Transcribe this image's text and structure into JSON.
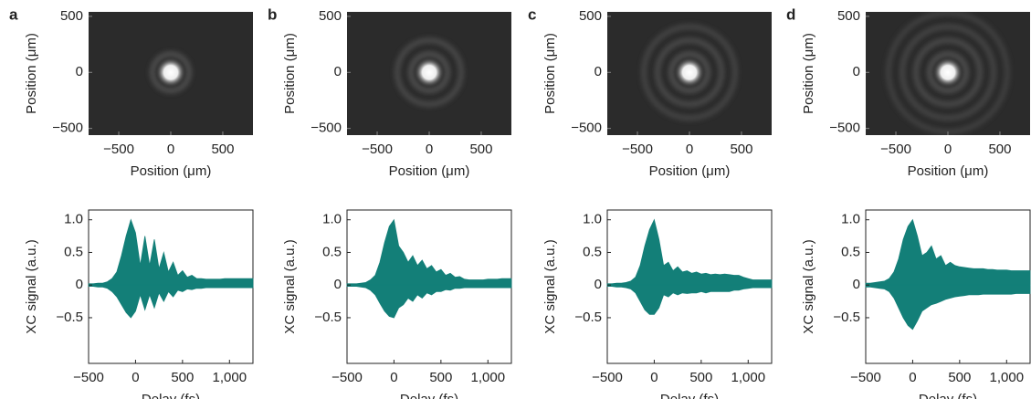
{
  "chart_data": [
    {
      "type": "image",
      "panel_label": "a",
      "xlabel": "Position (μm)",
      "ylabel": "Position (μm)",
      "xlim": [
        -790,
        790
      ],
      "ylim": [
        -560,
        540
      ],
      "xticks": [
        {
          "value": -500,
          "label": "−500"
        },
        0,
        500
      ],
      "yticks": [
        {
          "value": -500,
          "label": "−500"
        },
        0,
        500
      ]
    },
    {
      "type": "image",
      "panel_label": "b",
      "xlabel": "Position (μm)",
      "ylabel": "Position (μm)",
      "xlim": [
        -790,
        790
      ],
      "ylim": [
        -560,
        540
      ],
      "xticks": [
        {
          "value": -500,
          "label": "−500"
        },
        0,
        500
      ],
      "yticks": [
        {
          "value": -500,
          "label": "−500"
        },
        0,
        500
      ]
    },
    {
      "type": "image",
      "panel_label": "c",
      "xlabel": "Position (μm)",
      "ylabel": "Position (μm)",
      "xlim": [
        -790,
        790
      ],
      "ylim": [
        -560,
        540
      ],
      "xticks": [
        {
          "value": -500,
          "label": "−500"
        },
        0,
        500
      ],
      "yticks": [
        {
          "value": -500,
          "label": "−500"
        },
        0,
        500
      ]
    },
    {
      "type": "image",
      "panel_label": "d",
      "xlabel": "Position (μm)",
      "ylabel": "Position (μm)",
      "xlim": [
        -790,
        790
      ],
      "ylim": [
        -560,
        540
      ],
      "xticks": [
        {
          "value": -500,
          "label": "−500"
        },
        0,
        500
      ],
      "yticks": [
        {
          "value": -500,
          "label": "−500"
        },
        0,
        500
      ]
    },
    {
      "type": "area",
      "xlabel": "Delay (fs)",
      "ylabel": "XC signal (a.u.)",
      "xlim": [
        -500,
        1250
      ],
      "ylim": [
        -1.2,
        1.15
      ],
      "xticks": [
        {
          "value": -500,
          "label": "−500"
        },
        0,
        500,
        {
          "value": 1000,
          "label": "1,000"
        }
      ],
      "yticks": [
        {
          "value": -0.5,
          "label": "−0.5"
        },
        0,
        0.5,
        {
          "value": 1,
          "label": "1.0"
        }
      ],
      "x": [
        -500,
        -450,
        -400,
        -350,
        -300,
        -250,
        -200,
        -150,
        -100,
        -50,
        0,
        50,
        100,
        150,
        200,
        250,
        300,
        350,
        400,
        450,
        500,
        550,
        600,
        650,
        700,
        750,
        800,
        850,
        900,
        950,
        1000,
        1050,
        1100,
        1150,
        1200,
        1250
      ],
      "series": [
        {
          "color": "#137f78",
          "values": [
            0.02,
            0.02,
            0.03,
            0.03,
            0.05,
            0.1,
            0.2,
            0.45,
            0.75,
            1.0,
            0.8,
            0.3,
            0.75,
            0.3,
            0.7,
            0.25,
            0.5,
            0.2,
            0.35,
            0.15,
            0.22,
            0.12,
            0.15,
            0.1,
            0.1,
            0.09,
            0.09,
            0.09,
            0.09,
            0.1,
            0.1,
            0.1,
            0.1,
            0.1,
            0.1,
            0.1
          ]
        },
        {
          "color": "#137f78",
          "values": [
            -0.02,
            -0.02,
            -0.03,
            -0.03,
            -0.05,
            -0.1,
            -0.18,
            -0.3,
            -0.42,
            -0.5,
            -0.4,
            -0.15,
            -0.38,
            -0.15,
            -0.35,
            -0.12,
            -0.25,
            -0.1,
            -0.18,
            -0.08,
            -0.1,
            -0.06,
            -0.07,
            -0.05,
            -0.05,
            -0.04,
            -0.04,
            -0.04,
            -0.04,
            -0.04,
            -0.04,
            -0.04,
            -0.04,
            -0.04,
            -0.04,
            -0.04
          ]
        }
      ]
    },
    {
      "type": "area",
      "xlabel": "Delay (fs)",
      "ylabel": "XC signal (a.u.)",
      "xlim": [
        -500,
        1250
      ],
      "ylim": [
        -1.2,
        1.15
      ],
      "xticks": [
        {
          "value": -500,
          "label": "−500"
        },
        0,
        500,
        {
          "value": 1000,
          "label": "1,000"
        }
      ],
      "yticks": [
        {
          "value": -0.5,
          "label": "−0.5"
        },
        0,
        0.5,
        {
          "value": 1,
          "label": "1.0"
        }
      ],
      "x": [
        -500,
        -450,
        -400,
        -350,
        -300,
        -250,
        -200,
        -150,
        -100,
        -50,
        0,
        50,
        100,
        150,
        200,
        250,
        300,
        350,
        400,
        450,
        500,
        550,
        600,
        650,
        700,
        750,
        800,
        850,
        900,
        950,
        1000,
        1050,
        1100,
        1150,
        1200,
        1250
      ],
      "series": [
        {
          "color": "#137f78",
          "values": [
            0.02,
            0.02,
            0.02,
            0.03,
            0.04,
            0.08,
            0.15,
            0.35,
            0.65,
            0.9,
            1.0,
            0.6,
            0.5,
            0.35,
            0.45,
            0.3,
            0.38,
            0.25,
            0.3,
            0.2,
            0.24,
            0.15,
            0.18,
            0.12,
            0.13,
            0.09,
            0.08,
            0.08,
            0.08,
            0.08,
            0.09,
            0.09,
            0.09,
            0.1,
            0.1,
            0.1
          ]
        },
        {
          "color": "#137f78",
          "values": [
            -0.02,
            -0.02,
            -0.02,
            -0.03,
            -0.04,
            -0.08,
            -0.15,
            -0.28,
            -0.4,
            -0.48,
            -0.5,
            -0.35,
            -0.3,
            -0.2,
            -0.25,
            -0.15,
            -0.2,
            -0.12,
            -0.15,
            -0.1,
            -0.1,
            -0.07,
            -0.08,
            -0.05,
            -0.05,
            -0.04,
            -0.04,
            -0.04,
            -0.04,
            -0.04,
            -0.04,
            -0.04,
            -0.04,
            -0.04,
            -0.04,
            -0.04
          ]
        }
      ]
    },
    {
      "type": "area",
      "xlabel": "Delay (fs)",
      "ylabel": "XC signal (a.u.)",
      "xlim": [
        -500,
        1250
      ],
      "ylim": [
        -1.2,
        1.15
      ],
      "xticks": [
        {
          "value": -500,
          "label": "−500"
        },
        0,
        500,
        {
          "value": 1000,
          "label": "1,000"
        }
      ],
      "yticks": [
        {
          "value": -0.5,
          "label": "−0.5"
        },
        0,
        0.5,
        {
          "value": 1,
          "label": "1.0"
        }
      ],
      "x": [
        -500,
        -450,
        -400,
        -350,
        -300,
        -250,
        -200,
        -150,
        -100,
        -50,
        0,
        50,
        100,
        150,
        200,
        250,
        300,
        350,
        400,
        450,
        500,
        550,
        600,
        650,
        700,
        750,
        800,
        850,
        900,
        950,
        1000,
        1050,
        1100,
        1150,
        1200,
        1250
      ],
      "series": [
        {
          "color": "#137f78",
          "values": [
            0.02,
            0.02,
            0.03,
            0.03,
            0.04,
            0.06,
            0.12,
            0.3,
            0.6,
            0.85,
            1.0,
            0.7,
            0.3,
            0.35,
            0.22,
            0.28,
            0.2,
            0.22,
            0.18,
            0.2,
            0.17,
            0.18,
            0.16,
            0.17,
            0.16,
            0.17,
            0.16,
            0.15,
            0.15,
            0.12,
            0.1,
            0.08,
            0.08,
            0.08,
            0.08,
            0.08
          ]
        },
        {
          "color": "#137f78",
          "values": [
            -0.02,
            -0.02,
            -0.03,
            -0.03,
            -0.04,
            -0.06,
            -0.12,
            -0.25,
            -0.38,
            -0.45,
            -0.45,
            -0.35,
            -0.15,
            -0.18,
            -0.12,
            -0.15,
            -0.12,
            -0.13,
            -0.12,
            -0.12,
            -0.1,
            -0.12,
            -0.1,
            -0.1,
            -0.1,
            -0.1,
            -0.1,
            -0.08,
            -0.08,
            -0.06,
            -0.05,
            -0.04,
            -0.04,
            -0.04,
            -0.04,
            -0.04
          ]
        }
      ]
    },
    {
      "type": "area",
      "xlabel": "Delay (fs)",
      "ylabel": "XC signal (a.u.)",
      "xlim": [
        -500,
        1250
      ],
      "ylim": [
        -1.2,
        1.15
      ],
      "xticks": [
        {
          "value": -500,
          "label": "−500"
        },
        0,
        500,
        {
          "value": 1000,
          "label": "1,000"
        }
      ],
      "yticks": [
        {
          "value": -0.5,
          "label": "−0.5"
        },
        0,
        0.5,
        {
          "value": 1,
          "label": "1.0"
        }
      ],
      "x": [
        -500,
        -450,
        -400,
        -350,
        -300,
        -250,
        -200,
        -150,
        -100,
        -50,
        0,
        50,
        100,
        150,
        200,
        250,
        300,
        350,
        400,
        450,
        500,
        550,
        600,
        650,
        700,
        750,
        800,
        850,
        900,
        950,
        1000,
        1050,
        1100,
        1150,
        1200,
        1250
      ],
      "series": [
        {
          "color": "#137f78",
          "values": [
            0.03,
            0.03,
            0.04,
            0.05,
            0.06,
            0.1,
            0.2,
            0.4,
            0.7,
            0.9,
            1.0,
            0.75,
            0.45,
            0.5,
            0.6,
            0.4,
            0.45,
            0.3,
            0.35,
            0.3,
            0.28,
            0.27,
            0.26,
            0.25,
            0.25,
            0.25,
            0.24,
            0.24,
            0.23,
            0.23,
            0.23,
            0.22,
            0.22,
            0.22,
            0.22,
            0.22
          ]
        },
        {
          "color": "#137f78",
          "values": [
            -0.03,
            -0.03,
            -0.04,
            -0.05,
            -0.06,
            -0.1,
            -0.2,
            -0.35,
            -0.5,
            -0.62,
            -0.68,
            -0.55,
            -0.4,
            -0.35,
            -0.3,
            -0.28,
            -0.25,
            -0.22,
            -0.2,
            -0.18,
            -0.17,
            -0.16,
            -0.15,
            -0.15,
            -0.15,
            -0.14,
            -0.14,
            -0.14,
            -0.14,
            -0.14,
            -0.14,
            -0.14,
            -0.13,
            -0.13,
            -0.13,
            -0.13
          ]
        }
      ]
    }
  ]
}
